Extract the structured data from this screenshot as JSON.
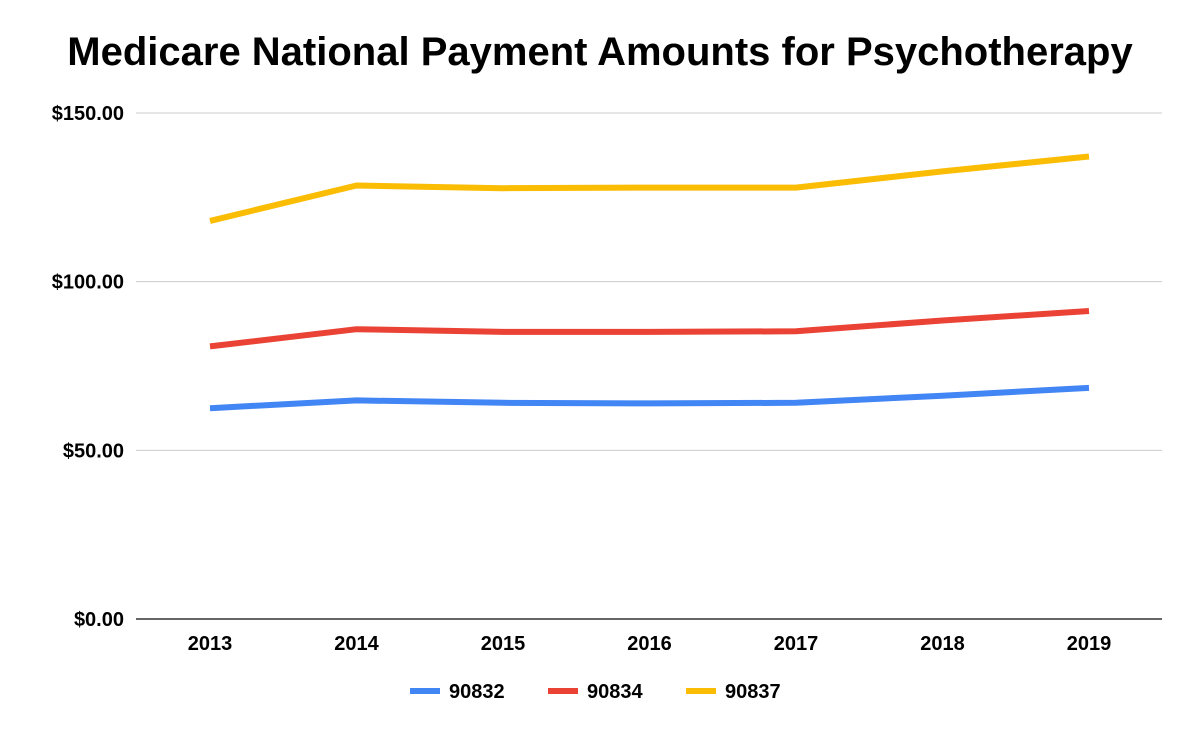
{
  "chart_data": {
    "type": "line",
    "title": "Medicare National Payment Amounts for Psychotherapy",
    "xlabel": "",
    "ylabel": "",
    "categories": [
      "2013",
      "2014",
      "2015",
      "2016",
      "2017",
      "2018",
      "2019"
    ],
    "ylim": [
      0,
      150
    ],
    "yticks": [
      "$0.00",
      "$50.00",
      "$100.00",
      "$150.00"
    ],
    "ytick_values": [
      0,
      50,
      100,
      150
    ],
    "grid": true,
    "legend_position": "bottom",
    "series": [
      {
        "name": "90832",
        "color": "#4285F4",
        "values": [
          62.5,
          64.8,
          64.1,
          63.9,
          64.1,
          66.2,
          68.5
        ]
      },
      {
        "name": "90834",
        "color": "#EA4335",
        "values": [
          80.8,
          85.9,
          85.1,
          85.1,
          85.3,
          88.5,
          91.3
        ]
      },
      {
        "name": "90837",
        "color": "#FBBC04",
        "values": [
          118.0,
          128.5,
          127.7,
          127.9,
          127.9,
          132.7,
          137.1
        ]
      }
    ]
  }
}
